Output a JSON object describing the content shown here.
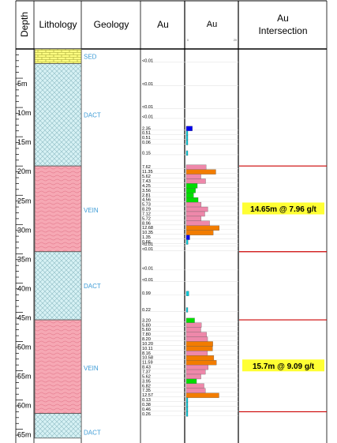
{
  "header": {
    "depth": "Depth",
    "lithology": "Lithology",
    "geology": "Geology",
    "au_values": "Au",
    "au_bars": "Au",
    "au_scale_min": "0",
    "au_scale_max": "20",
    "intersection_line1": "Au",
    "intersection_line2": "Intersection"
  },
  "depth_ticks": [
    {
      "depth": 5,
      "label": "5m"
    },
    {
      "depth": 10,
      "label": "10m"
    },
    {
      "depth": 15,
      "label": "15m"
    },
    {
      "depth": 20,
      "label": "20m"
    },
    {
      "depth": 25,
      "label": "25m"
    },
    {
      "depth": 30,
      "label": "30m"
    },
    {
      "depth": 35,
      "label": "35m"
    },
    {
      "depth": 40,
      "label": "40m"
    },
    {
      "depth": 45,
      "label": "45m"
    },
    {
      "depth": 50,
      "label": "50m"
    },
    {
      "depth": 55,
      "label": "55m"
    },
    {
      "depth": 60,
      "label": "60m"
    },
    {
      "depth": 65,
      "label": "65m"
    }
  ],
  "lithology": [
    {
      "from": 0,
      "to": 2.5,
      "code": "SED",
      "pattern": "brick"
    },
    {
      "from": 2.5,
      "to": 20,
      "code": "DACT",
      "pattern": "cross"
    },
    {
      "from": 20,
      "to": 34.65,
      "code": "VEIN",
      "pattern": "wave"
    },
    {
      "from": 34.65,
      "to": 46.3,
      "code": "DACT",
      "pattern": "cross"
    },
    {
      "from": 46.3,
      "to": 62.3,
      "code": "VEIN",
      "pattern": "wave"
    },
    {
      "from": 62.3,
      "to": 66.5,
      "code": "DACT",
      "pattern": "cross"
    }
  ],
  "geology_labels": [
    {
      "depth": 1.3,
      "text": "SED"
    },
    {
      "depth": 11.3,
      "text": "DACT"
    },
    {
      "depth": 27.5,
      "text": "VEIN"
    },
    {
      "depth": 40.5,
      "text": "DACT"
    },
    {
      "depth": 54.5,
      "text": "VEIN"
    },
    {
      "depth": 65.5,
      "text": "DACT"
    }
  ],
  "assays": [
    {
      "depth": 2.0,
      "label": "<0.01",
      "value": 0
    },
    {
      "depth": 6.0,
      "label": "<0.01",
      "value": 0
    },
    {
      "depth": 9.9,
      "label": "<0.01",
      "value": 0
    },
    {
      "depth": 11.6,
      "label": "<0.01",
      "value": 0
    },
    {
      "depth": 13.6,
      "label": "2.35",
      "value": 2.35
    },
    {
      "depth": 14.4,
      "label": "0.51",
      "value": 0.51
    },
    {
      "depth": 15.2,
      "label": "0.51",
      "value": 0.51
    },
    {
      "depth": 16.0,
      "label": "0.06",
      "value": 0.06
    },
    {
      "depth": 17.8,
      "label": "0.15",
      "value": 0.15
    },
    {
      "depth": 20.2,
      "label": "7.62",
      "value": 7.62
    },
    {
      "depth": 21.0,
      "label": "11.35",
      "value": 11.35
    },
    {
      "depth": 21.8,
      "label": "5.62",
      "value": 5.62
    },
    {
      "depth": 22.6,
      "label": "7.43",
      "value": 7.43
    },
    {
      "depth": 23.4,
      "label": "4.25",
      "value": 4.25
    },
    {
      "depth": 24.2,
      "label": "3.56",
      "value": 3.56
    },
    {
      "depth": 25.0,
      "label": "2.81",
      "value": 2.81
    },
    {
      "depth": 25.8,
      "label": "4.56",
      "value": 4.56
    },
    {
      "depth": 26.6,
      "label": "5.73",
      "value": 5.73
    },
    {
      "depth": 27.4,
      "label": "8.29",
      "value": 8.29
    },
    {
      "depth": 28.2,
      "label": "7.12",
      "value": 7.12
    },
    {
      "depth": 29.0,
      "label": "5.72",
      "value": 5.72
    },
    {
      "depth": 29.8,
      "label": "8.96",
      "value": 8.96
    },
    {
      "depth": 30.6,
      "label": "12.68",
      "value": 12.68
    },
    {
      "depth": 31.4,
      "label": "10.35",
      "value": 10.35
    },
    {
      "depth": 32.2,
      "label": "1.35",
      "value": 1.35
    },
    {
      "depth": 33.0,
      "label": "0.66",
      "value": 0.66
    },
    {
      "depth": 33.4,
      "label": "<0.01",
      "value": 0
    },
    {
      "depth": 34.2,
      "label": "<0.01",
      "value": 0
    },
    {
      "depth": 37.5,
      "label": "<0.01",
      "value": 0
    },
    {
      "depth": 39.5,
      "label": "<0.01",
      "value": 0
    },
    {
      "depth": 41.8,
      "label": "0.99",
      "value": 0.99
    },
    {
      "depth": 44.6,
      "label": "0.22",
      "value": 0.22
    },
    {
      "depth": 46.4,
      "label": "3.20",
      "value": 3.2
    },
    {
      "depth": 47.2,
      "label": "5.80",
      "value": 5.8
    },
    {
      "depth": 48.0,
      "label": "5.60",
      "value": 5.6
    },
    {
      "depth": 48.8,
      "label": "7.80",
      "value": 7.8
    },
    {
      "depth": 49.6,
      "label": "8.20",
      "value": 8.2
    },
    {
      "depth": 50.4,
      "label": "10.20",
      "value": 10.2
    },
    {
      "depth": 51.2,
      "label": "10.11",
      "value": 10.11
    },
    {
      "depth": 52.0,
      "label": "8.16",
      "value": 8.16
    },
    {
      "depth": 52.8,
      "label": "10.58",
      "value": 10.58
    },
    {
      "depth": 53.6,
      "label": "11.59",
      "value": 11.59
    },
    {
      "depth": 54.4,
      "label": "8.43",
      "value": 8.43
    },
    {
      "depth": 55.2,
      "label": "7.37",
      "value": 7.37
    },
    {
      "depth": 56.0,
      "label": "5.62",
      "value": 5.62
    },
    {
      "depth": 56.8,
      "label": "3.95",
      "value": 3.95
    },
    {
      "depth": 57.6,
      "label": "6.82",
      "value": 6.82
    },
    {
      "depth": 58.4,
      "label": "7.35",
      "value": 7.35
    },
    {
      "depth": 59.2,
      "label": "12.57",
      "value": 12.57
    },
    {
      "depth": 60.0,
      "label": "0.13",
      "value": 0.13
    },
    {
      "depth": 60.8,
      "label": "0.38",
      "value": 0.38
    },
    {
      "depth": 61.6,
      "label": "0.46",
      "value": 0.46
    },
    {
      "depth": 62.4,
      "label": "0.26",
      "value": 0.26
    }
  ],
  "intersections": [
    {
      "from": 20,
      "to": 34.65,
      "label": "14.65m @ 7.96 g/t"
    },
    {
      "from": 46.3,
      "to": 62.0,
      "label": "15.7m @ 9.09 g/t"
    }
  ],
  "colors": {
    "sed": "#ffff80",
    "dact": "#d6f1f4",
    "dact_line": "#8fbcc4",
    "vein": "#f6a8b4",
    "vein_line": "#e88294",
    "geology_text": "#3d9bd6",
    "bar_low": "#0000ee",
    "bar_mid": "#00dd00",
    "bar_high": "#ee88aa",
    "bar_top": "#f27c00",
    "bar_trace": "#00c8d8",
    "intersection_line": "#cc0000",
    "intersection_bg": "#ffff33"
  }
}
